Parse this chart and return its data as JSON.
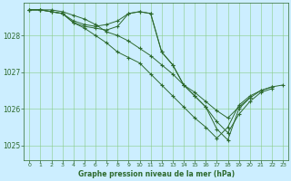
{
  "title": "Graphe pression niveau de la mer (hPa)",
  "bg_color": "#cceeff",
  "line_color": "#2d6a2d",
  "grid_color": "#88cc88",
  "xlim": [
    -0.5,
    23.5
  ],
  "ylim": [
    1024.6,
    1028.9
  ],
  "yticks": [
    1025,
    1026,
    1027,
    1028
  ],
  "xticks": [
    0,
    1,
    2,
    3,
    4,
    5,
    6,
    7,
    8,
    9,
    10,
    11,
    12,
    13,
    14,
    15,
    16,
    17,
    18,
    19,
    20,
    21,
    22,
    23
  ],
  "series": [
    [
      1028.7,
      1028.7,
      1028.7,
      1028.65,
      1028.55,
      1028.45,
      1028.3,
      1028.1,
      1028.0,
      1027.85,
      1027.65,
      1027.45,
      1027.2,
      1026.95,
      1026.65,
      1026.45,
      1026.2,
      1025.95,
      1025.75,
      1026.05,
      1026.3,
      1026.5,
      1026.6,
      1026.65
    ],
    [
      1028.7,
      1028.7,
      1028.65,
      1028.6,
      1028.35,
      1028.25,
      1028.2,
      1028.15,
      1028.25,
      1028.6,
      1028.65,
      1028.6,
      1027.55,
      1027.2,
      1026.65,
      1026.35,
      1026.05,
      1025.65,
      1025.35,
      1025.85,
      1026.2,
      1026.45,
      1026.55,
      null
    ],
    [
      1028.7,
      1028.7,
      1028.65,
      1028.6,
      1028.4,
      1028.3,
      1028.25,
      1028.3,
      1028.4,
      1028.6,
      1028.65,
      1028.6,
      1027.55,
      1027.2,
      1026.65,
      1026.35,
      1026.05,
      1025.45,
      1025.15,
      1026.0,
      1026.3,
      null,
      null,
      null
    ],
    [
      1028.7,
      1028.7,
      1028.65,
      1028.6,
      1028.35,
      1028.2,
      1028.0,
      1027.8,
      1027.55,
      1027.4,
      1027.25,
      1026.95,
      1026.65,
      1026.35,
      1026.05,
      1025.75,
      1025.5,
      1025.2,
      1025.5,
      1026.1,
      1026.35,
      1026.5,
      1026.6,
      null
    ]
  ]
}
